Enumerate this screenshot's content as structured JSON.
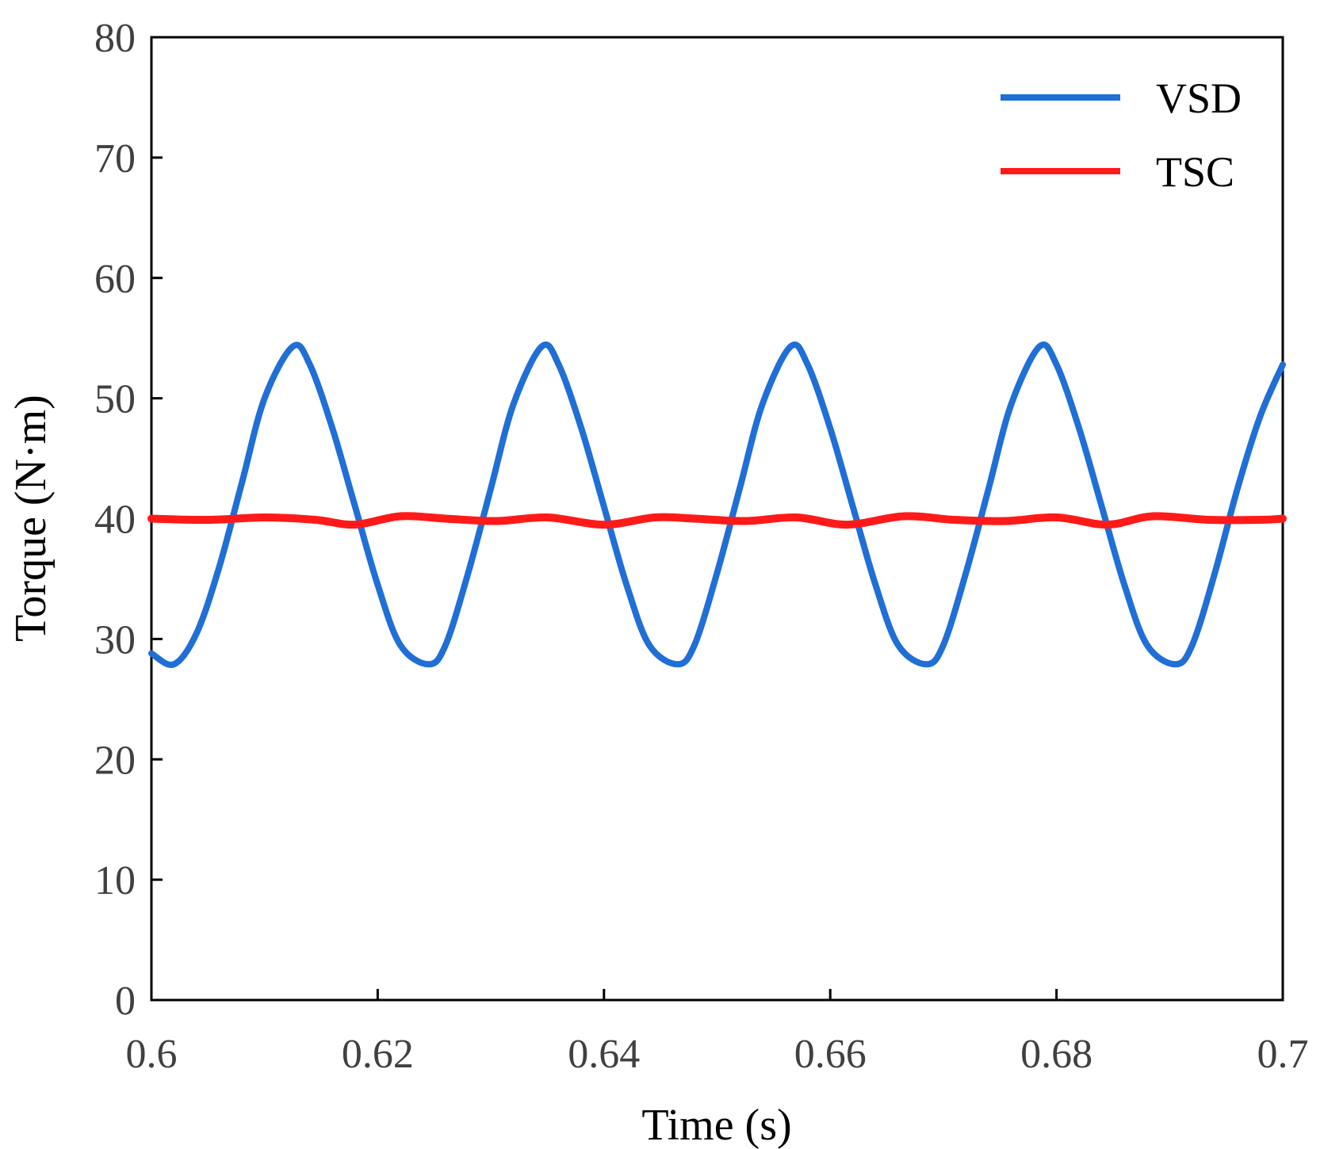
{
  "chart_data": {
    "type": "line",
    "title": "",
    "xlabel": "Time (s)",
    "ylabel": "Torque (N·m)",
    "xlim": [
      0.6,
      0.7
    ],
    "ylim": [
      0,
      80
    ],
    "grid": false,
    "legend_position": "top-right",
    "x_ticks": [
      0.6,
      0.62,
      0.64,
      0.66,
      0.68,
      0.7
    ],
    "x_tick_labels": [
      "0.6",
      "0.62",
      "0.64",
      "0.66",
      "0.68",
      "0.7"
    ],
    "y_ticks": [
      0,
      10,
      20,
      30,
      40,
      50,
      60,
      70,
      80
    ],
    "y_tick_labels": [
      "0",
      "10",
      "20",
      "30",
      "40",
      "50",
      "60",
      "70",
      "80"
    ],
    "series": [
      {
        "name": "VSD",
        "color": "#1f6fd6",
        "x": [
          0.6,
          0.602,
          0.604,
          0.606,
          0.608,
          0.61,
          0.6125,
          0.614,
          0.616,
          0.618,
          0.62,
          0.622,
          0.6245,
          0.626,
          0.628,
          0.63,
          0.632,
          0.6345,
          0.636,
          0.638,
          0.64,
          0.642,
          0.644,
          0.6465,
          0.648,
          0.65,
          0.652,
          0.654,
          0.6565,
          0.658,
          0.66,
          0.662,
          0.664,
          0.666,
          0.6685,
          0.67,
          0.672,
          0.674,
          0.676,
          0.6785,
          0.68,
          0.682,
          0.684,
          0.686,
          0.688,
          0.6905,
          0.692,
          0.694,
          0.696,
          0.698,
          0.7
        ],
        "values": [
          28.8,
          27.9,
          30.5,
          36.0,
          43.0,
          50.0,
          54.3,
          52.8,
          47.5,
          41.0,
          34.5,
          29.5,
          27.9,
          29.5,
          35.5,
          42.5,
          49.5,
          54.3,
          52.8,
          47.5,
          41.0,
          34.5,
          29.5,
          27.9,
          29.5,
          35.5,
          42.5,
          49.5,
          54.3,
          52.8,
          47.5,
          41.0,
          34.5,
          29.5,
          27.9,
          29.5,
          35.5,
          42.5,
          49.5,
          54.3,
          52.8,
          47.5,
          41.0,
          34.5,
          29.5,
          27.9,
          29.5,
          35.5,
          42.5,
          48.5,
          52.8
        ]
      },
      {
        "name": "TSC",
        "color": "#ff1a1a",
        "x": [
          0.6,
          0.605,
          0.61,
          0.6145,
          0.618,
          0.622,
          0.626,
          0.6305,
          0.635,
          0.64,
          0.6445,
          0.648,
          0.6525,
          0.657,
          0.6615,
          0.6665,
          0.671,
          0.6755,
          0.68,
          0.6845,
          0.6885,
          0.6935,
          0.698,
          0.7
        ],
        "values": [
          40.0,
          39.9,
          40.1,
          39.9,
          39.5,
          40.2,
          40.0,
          39.8,
          40.1,
          39.5,
          40.1,
          40.0,
          39.8,
          40.1,
          39.5,
          40.2,
          39.9,
          39.8,
          40.1,
          39.5,
          40.2,
          39.9,
          39.9,
          40.0
        ]
      }
    ]
  }
}
